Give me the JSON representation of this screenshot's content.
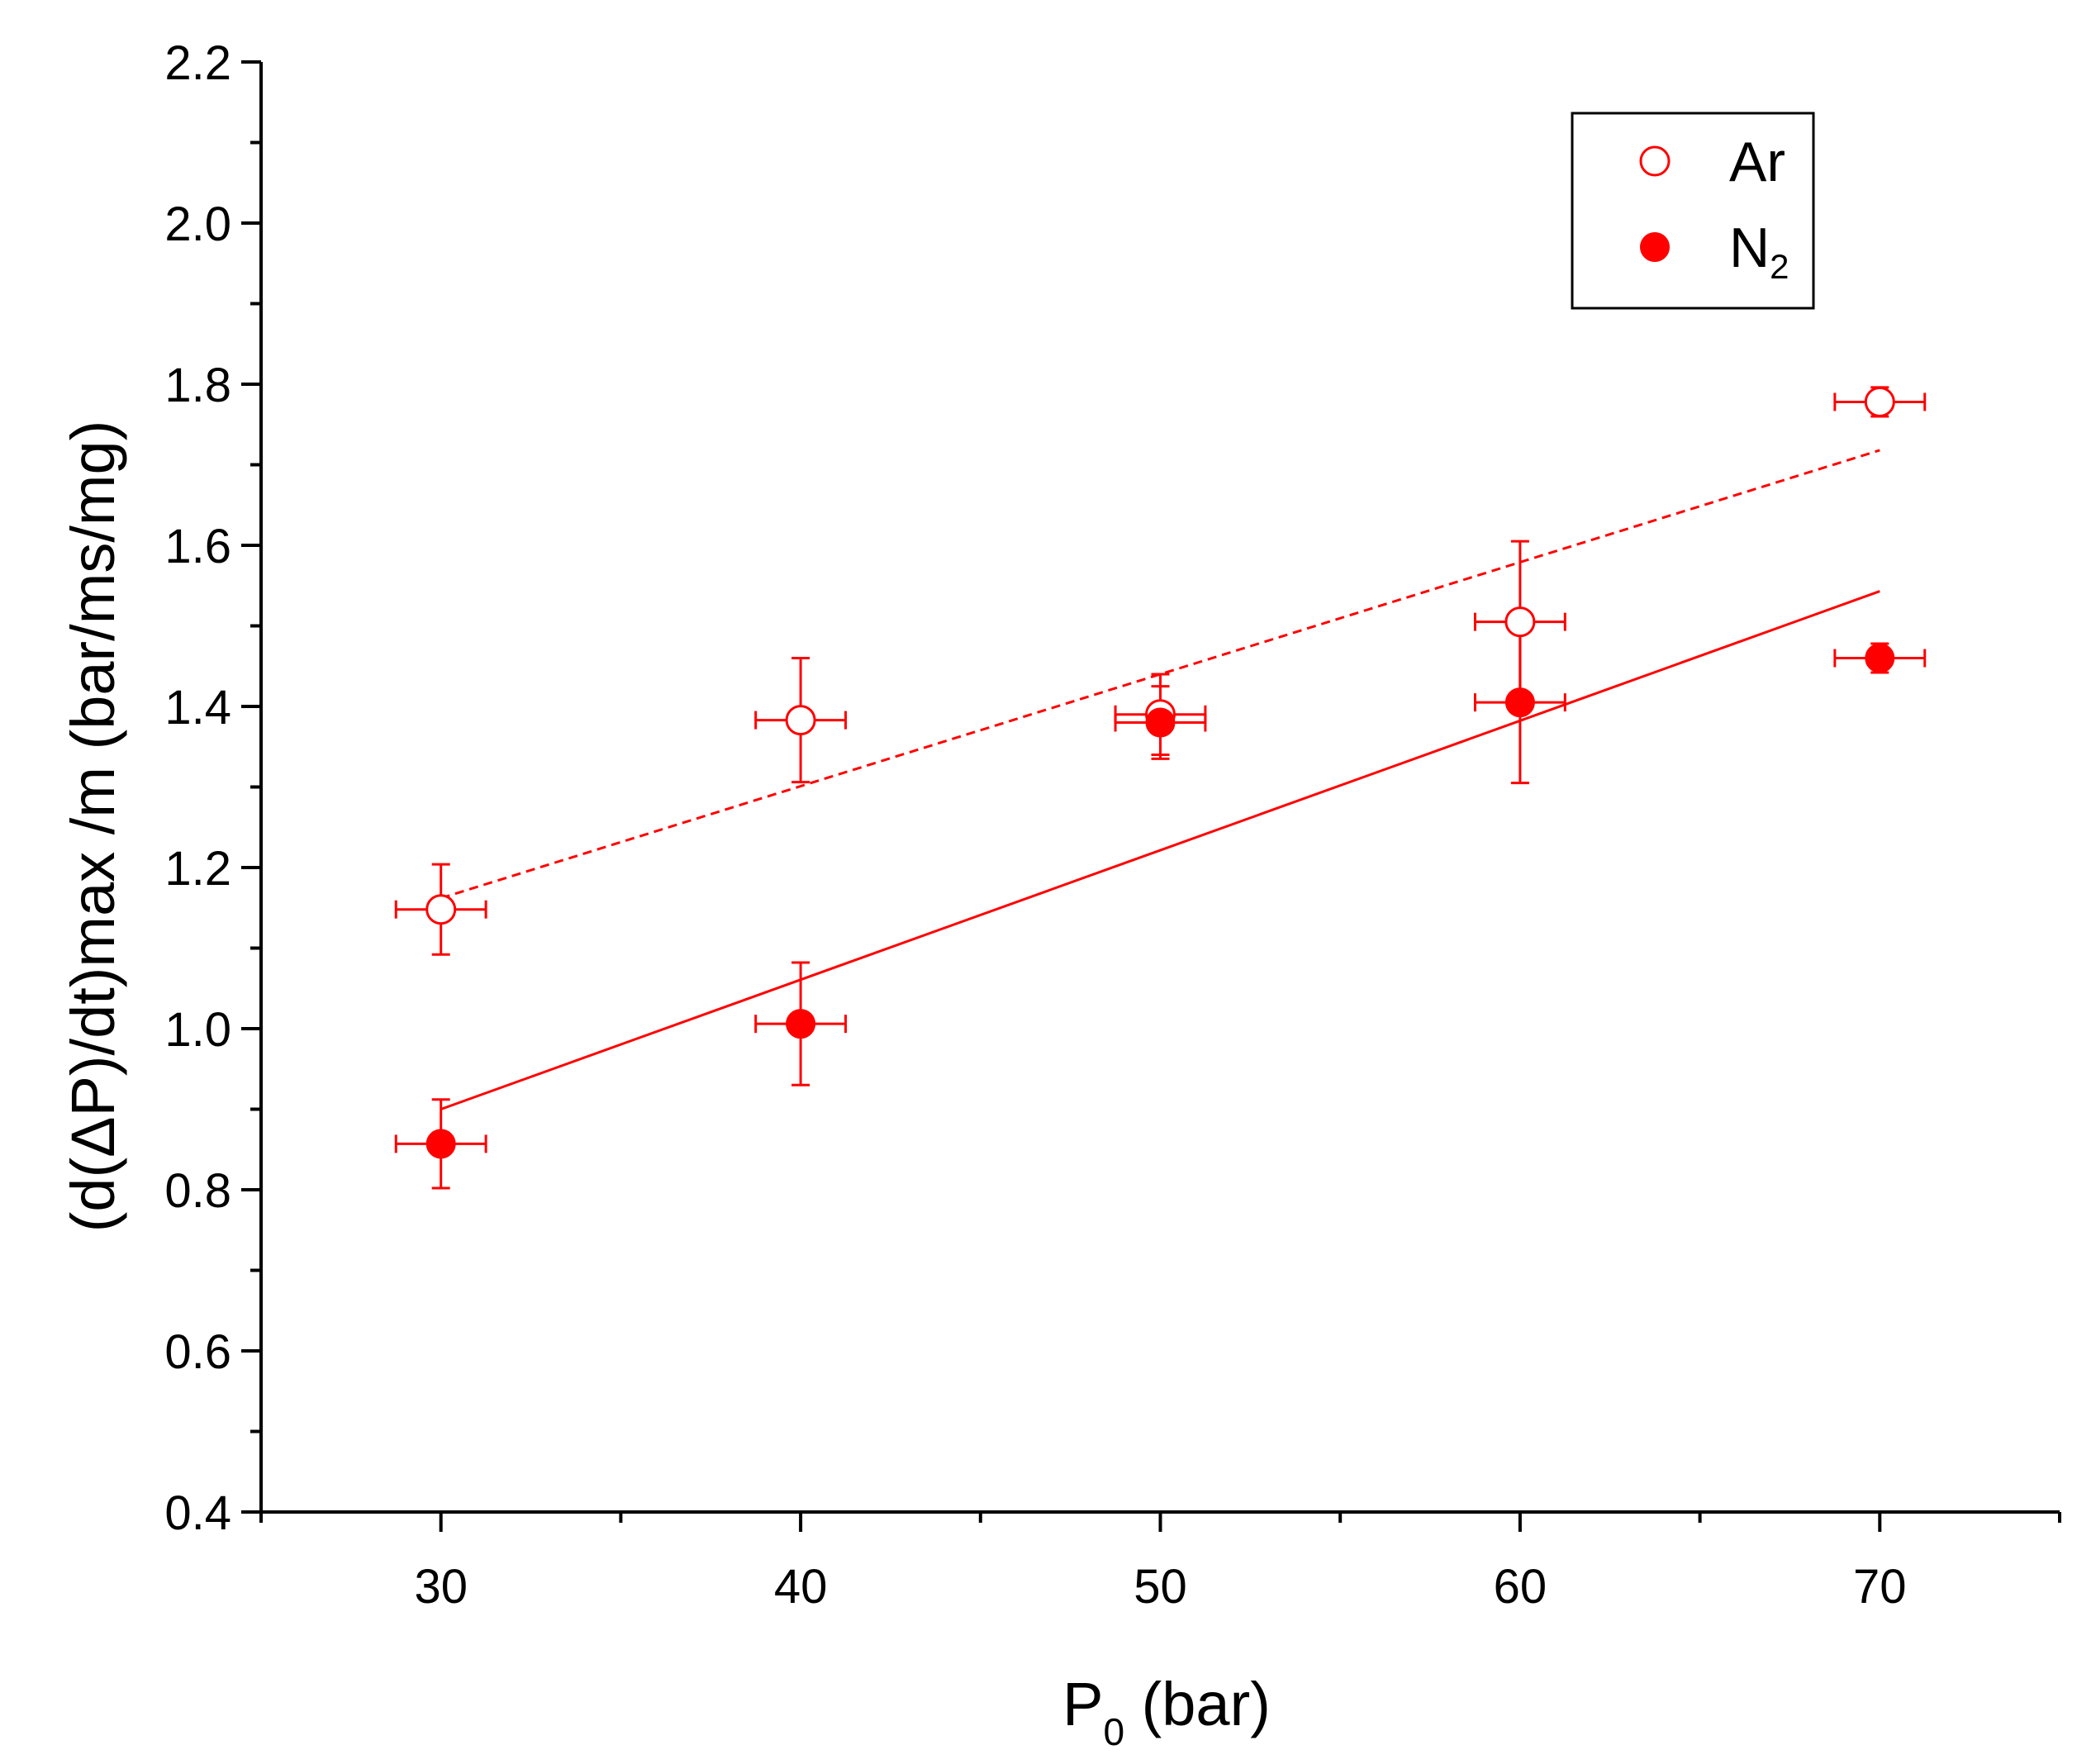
{
  "chart_data": {
    "type": "scatter",
    "title": "",
    "xlabel": {
      "main": "P",
      "sub": "0",
      "suffix": " (bar)"
    },
    "ylabel": "(d(ΔP)/dt)max /m (bar/ms/mg)",
    "xlim": [
      25,
      75
    ],
    "ylim": [
      0.4,
      2.2
    ],
    "xticks": [
      30,
      40,
      50,
      60,
      70
    ],
    "xtick_labels": [
      "30",
      "40",
      "50",
      "60",
      "70"
    ],
    "xminor": [
      25,
      35,
      45,
      55,
      65,
      75
    ],
    "yticks": [
      0.4,
      0.6,
      0.8,
      1.0,
      1.2,
      1.4,
      1.6,
      1.8,
      2.0,
      2.2
    ],
    "ytick_labels": [
      "0.4",
      "0.6",
      "0.8",
      "1.0",
      "1.2",
      "1.4",
      "1.6",
      "1.8",
      "2.0",
      "2.2"
    ],
    "yminor": [
      0.5,
      0.7,
      0.9,
      1.1,
      1.3,
      1.5,
      1.7,
      1.9,
      2.1
    ],
    "grid": false,
    "legend_position": "top-right",
    "color": "#ff0000",
    "series": [
      {
        "name": "Ar",
        "legend": {
          "main": "Ar",
          "sub": ""
        },
        "marker": "open-circle",
        "x": [
          30,
          40,
          50,
          60,
          70
        ],
        "y": [
          1.148,
          1.383,
          1.39,
          1.505,
          1.778
        ],
        "xerr": [
          1.25,
          1.25,
          1.25,
          1.25,
          1.25
        ],
        "yerr": [
          0.056,
          0.077,
          0.05,
          0.1,
          0.018
        ],
        "fit": {
          "style": "dashed",
          "x": [
            30,
            70
          ],
          "y": [
            1.162,
            1.718
          ]
        }
      },
      {
        "name": "N2",
        "legend": {
          "main": "N",
          "sub": "2"
        },
        "marker": "filled-circle",
        "x": [
          30,
          40,
          50,
          60,
          70
        ],
        "y": [
          0.857,
          1.006,
          1.38,
          1.405,
          1.46
        ],
        "xerr": [
          1.25,
          1.25,
          1.25,
          1.25,
          1.25
        ],
        "yerr": [
          0.055,
          0.076,
          0.045,
          0.1,
          0.018
        ],
        "fit": {
          "style": "solid",
          "x": [
            30,
            70
          ],
          "y": [
            0.9,
            1.543
          ]
        }
      }
    ]
  }
}
